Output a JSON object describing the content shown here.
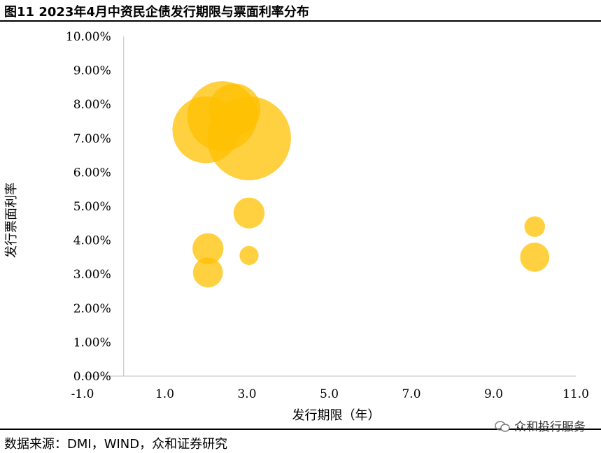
{
  "title": "图11 2023年4月中资民企债发行期限与票面利率分布",
  "source": "数据来源：DMI，WIND，众和证券研究",
  "watermark": "众和投行服务",
  "colors": {
    "bubble": "#FFC000",
    "axis": "#bfbfbf",
    "text": "#000000"
  },
  "chart_data": {
    "type": "scatter",
    "subtype": "bubble",
    "xlabel": "发行期限（年）",
    "ylabel": "发行票面利率",
    "xlim": [
      -1.0,
      11.0
    ],
    "ylim": [
      0.0,
      10.0
    ],
    "x_ticks": [
      -1.0,
      1.0,
      3.0,
      5.0,
      7.0,
      9.0,
      11.0
    ],
    "x_tick_labels": [
      "-1.0",
      "1.0",
      "3.0",
      "5.0",
      "7.0",
      "9.0",
      "11.0"
    ],
    "y_ticks": [
      0,
      1,
      2,
      3,
      4,
      5,
      6,
      7,
      8,
      9,
      10
    ],
    "y_tick_labels": [
      "0.00%",
      "1.00%",
      "2.00%",
      "3.00%",
      "4.00%",
      "5.00%",
      "6.00%",
      "7.00%",
      "8.00%",
      "9.00%",
      "10.00%"
    ],
    "y_axis_at_x": 0,
    "grid": false,
    "legend": "none",
    "points": [
      {
        "x": 2.0,
        "y": 7.25,
        "size": 2.1
      },
      {
        "x": 2.4,
        "y": 7.65,
        "size": 2.3
      },
      {
        "x": 2.7,
        "y": 7.85,
        "size": 1.25
      },
      {
        "x": 3.05,
        "y": 7.0,
        "size": 3.3
      },
      {
        "x": 3.05,
        "y": 4.8,
        "size": 0.45
      },
      {
        "x": 2.05,
        "y": 3.75,
        "size": 0.45
      },
      {
        "x": 3.05,
        "y": 3.55,
        "size": 0.17
      },
      {
        "x": 2.05,
        "y": 3.05,
        "size": 0.42
      },
      {
        "x": 10.0,
        "y": 4.4,
        "size": 0.2
      },
      {
        "x": 10.0,
        "y": 3.5,
        "size": 0.4
      }
    ]
  }
}
